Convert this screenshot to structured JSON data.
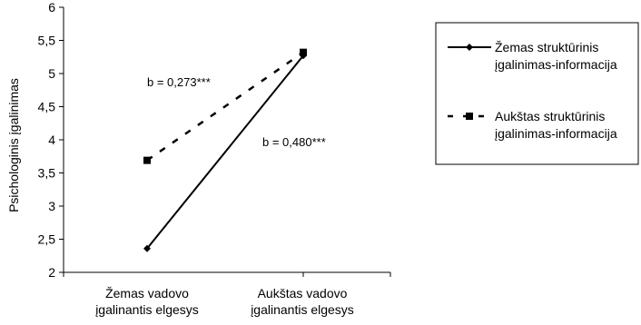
{
  "chart_data": {
    "type": "line",
    "ylabel": "Psichologinis įgalinimas",
    "ylim": [
      2,
      6
    ],
    "yticks": [
      "2",
      "2,5",
      "3",
      "3,5",
      "4",
      "4,5",
      "5",
      "5,5",
      "6"
    ],
    "categories": [
      "Žemas vadovo įgalinantis elgesys",
      "Aukštas vadovo įgalinantis elgesys"
    ],
    "category_lines": [
      [
        "Žemas vadovo",
        "įgalinantis elgesys"
      ],
      [
        "Aukštas vadovo",
        "įgalinantis elgesys"
      ]
    ],
    "series": [
      {
        "name": "Žemas struktūrinis įgalinimas-informacija",
        "name_lines": [
          "Žemas struktūrinis",
          "įgalinimas-informacija"
        ],
        "values": [
          2.36,
          5.27
        ],
        "style": "solid",
        "marker": "diamond",
        "color": "#000000"
      },
      {
        "name": "Aukštas struktūrinis įgalinimas-informacija",
        "name_lines": [
          "Aukštas struktūrinis",
          "įgalinimas-informacija"
        ],
        "values": [
          3.69,
          5.32
        ],
        "style": "dashed",
        "marker": "square",
        "color": "#000000"
      }
    ],
    "annotations": [
      {
        "text": "b = 0,273***",
        "series": 1
      },
      {
        "text": "b = 0,480***",
        "series": 0
      }
    ],
    "grid": false,
    "legend": "right"
  }
}
